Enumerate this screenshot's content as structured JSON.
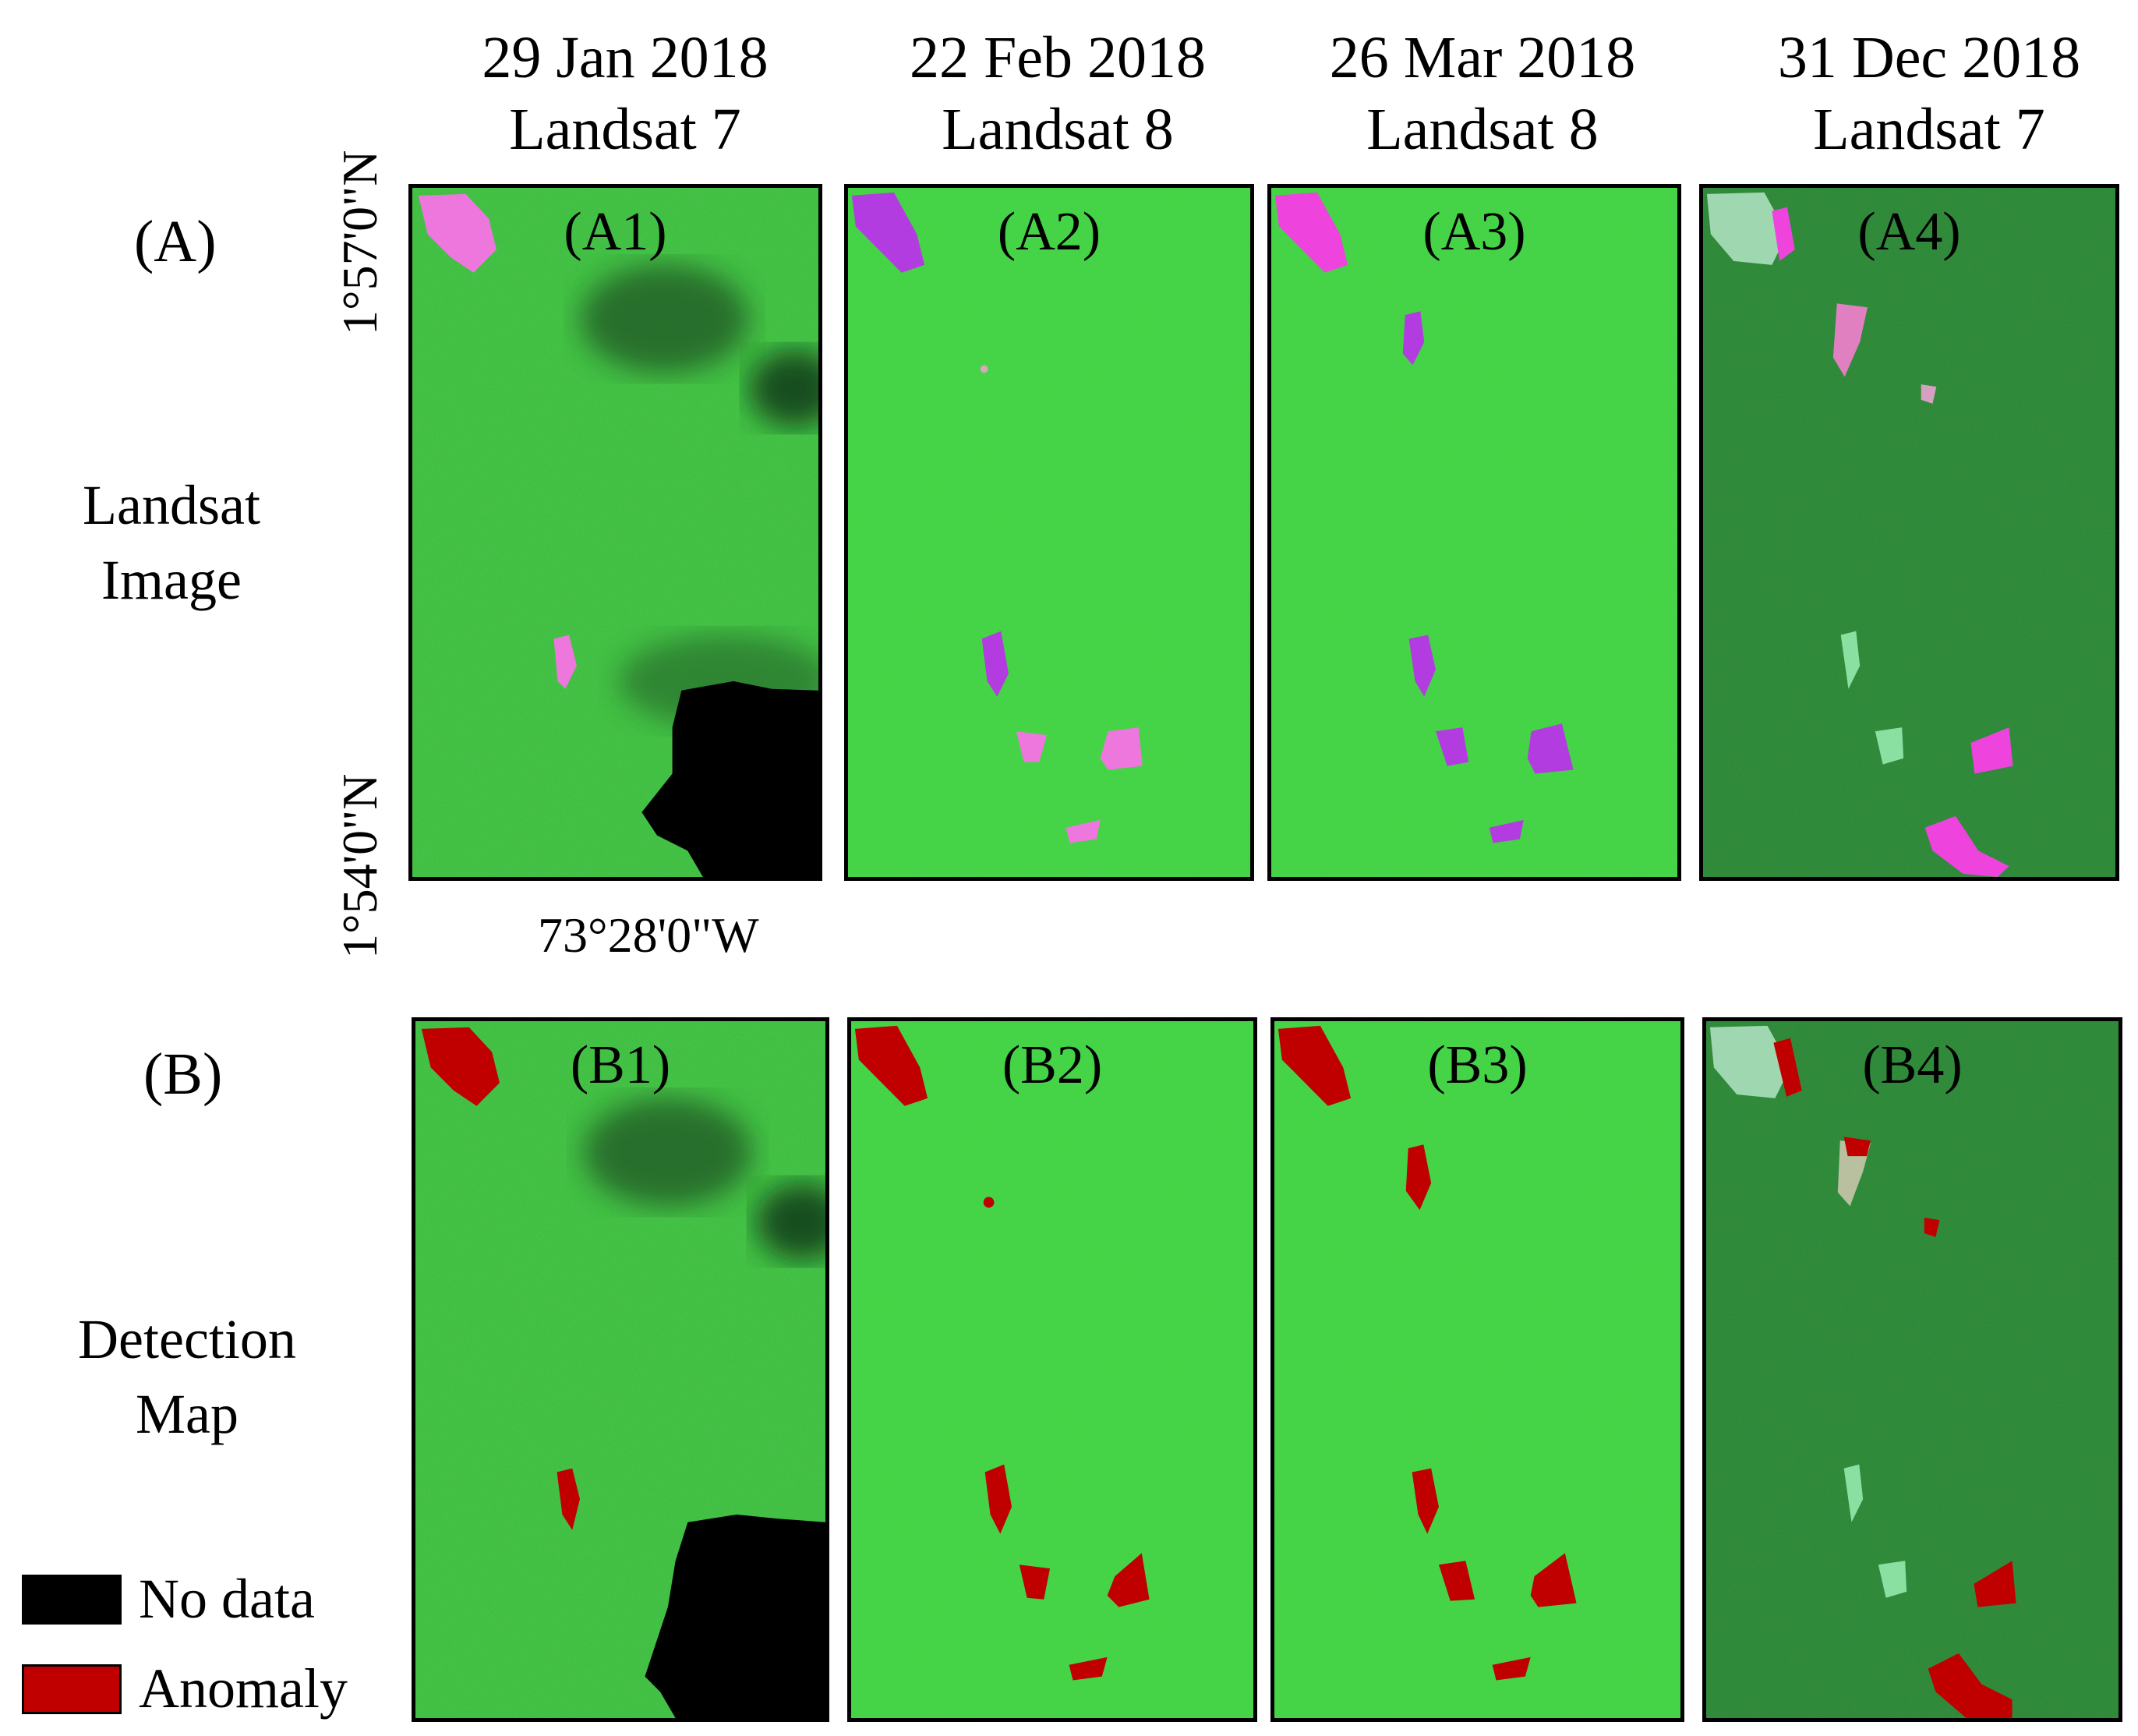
{
  "columns": [
    {
      "date": "29 Jan 2018",
      "sensor": "Landsat 7"
    },
    {
      "date": "22 Feb 2018",
      "sensor": "Landsat 8"
    },
    {
      "date": "26 Mar 2018",
      "sensor": "Landsat 8"
    },
    {
      "date": "31 Dec 2018",
      "sensor": "Landsat 7"
    }
  ],
  "rows": [
    {
      "tag": "(A)",
      "line1": "Landsat",
      "line2": "Image"
    },
    {
      "tag": "(B)",
      "line1": "Detection",
      "line2": "Map"
    }
  ],
  "coordinates": {
    "lat_top": "1°57'0\"N",
    "lat_bottom": "1°54'0\"N",
    "lon": "73°28'0\"W"
  },
  "panels": {
    "a1": "(A1)",
    "a2": "(A2)",
    "a3": "(A3)",
    "a4": "(A4)",
    "b1": "(B1)",
    "b2": "(B2)",
    "b3": "(B3)",
    "b4": "(B4)"
  },
  "legend": [
    {
      "label": "No data",
      "color": "#000000"
    },
    {
      "label": "Anomaly",
      "color": "#c00000"
    }
  ],
  "colors": {
    "vegetation_bright": "#33d633",
    "vegetation_dark": "#1f7a2a",
    "clearing_pink": "#ee77dd",
    "clearing_magenta": "#b33ce0",
    "anomaly_red": "#c00000",
    "no_data": "#000000"
  }
}
